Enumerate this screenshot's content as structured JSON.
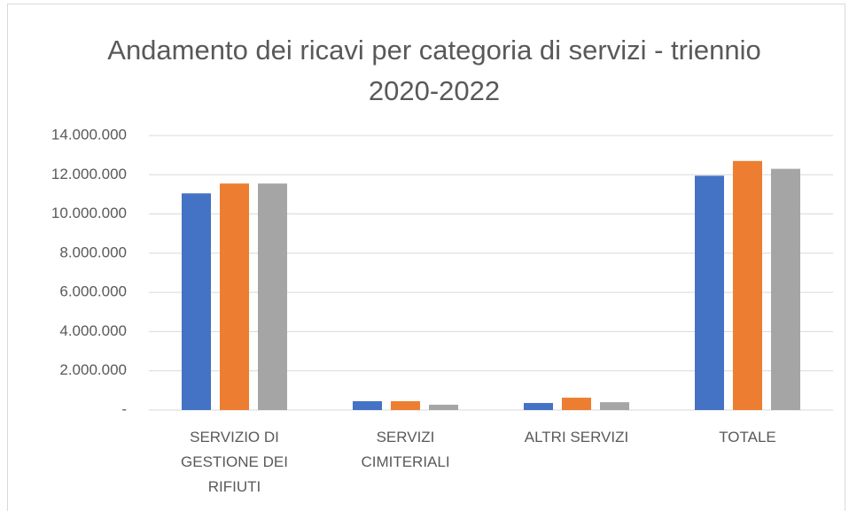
{
  "chart_data": {
    "type": "bar",
    "title": "Andamento dei ricavi per categoria di servizi - triennio 2020-2022",
    "categories": [
      "SERVIZIO DI GESTIONE DEI RIFIUTI",
      "SERVIZI CIMITERIALI",
      "ALTRI SERVIZI",
      "TOTALE"
    ],
    "series": [
      {
        "color": "#4472c4",
        "values": [
          11050000,
          450000,
          360000,
          11950000
        ]
      },
      {
        "color": "#ed7d31",
        "values": [
          11550000,
          450000,
          630000,
          12700000
        ]
      },
      {
        "color": "#a5a5a5",
        "values": [
          11550000,
          270000,
          400000,
          12300000
        ]
      }
    ],
    "ylim": [
      0,
      14000000
    ],
    "yticks": [
      {
        "value": 0,
        "label": "-"
      },
      {
        "value": 2000000,
        "label": "2.000.000"
      },
      {
        "value": 4000000,
        "label": "4.000.000"
      },
      {
        "value": 6000000,
        "label": "6.000.000"
      },
      {
        "value": 8000000,
        "label": "8.000.000"
      },
      {
        "value": 10000000,
        "label": "10.000.000"
      },
      {
        "value": 12000000,
        "label": "12.000.000"
      },
      {
        "value": 14000000,
        "label": "14.000.000"
      }
    ],
    "grid": true
  }
}
